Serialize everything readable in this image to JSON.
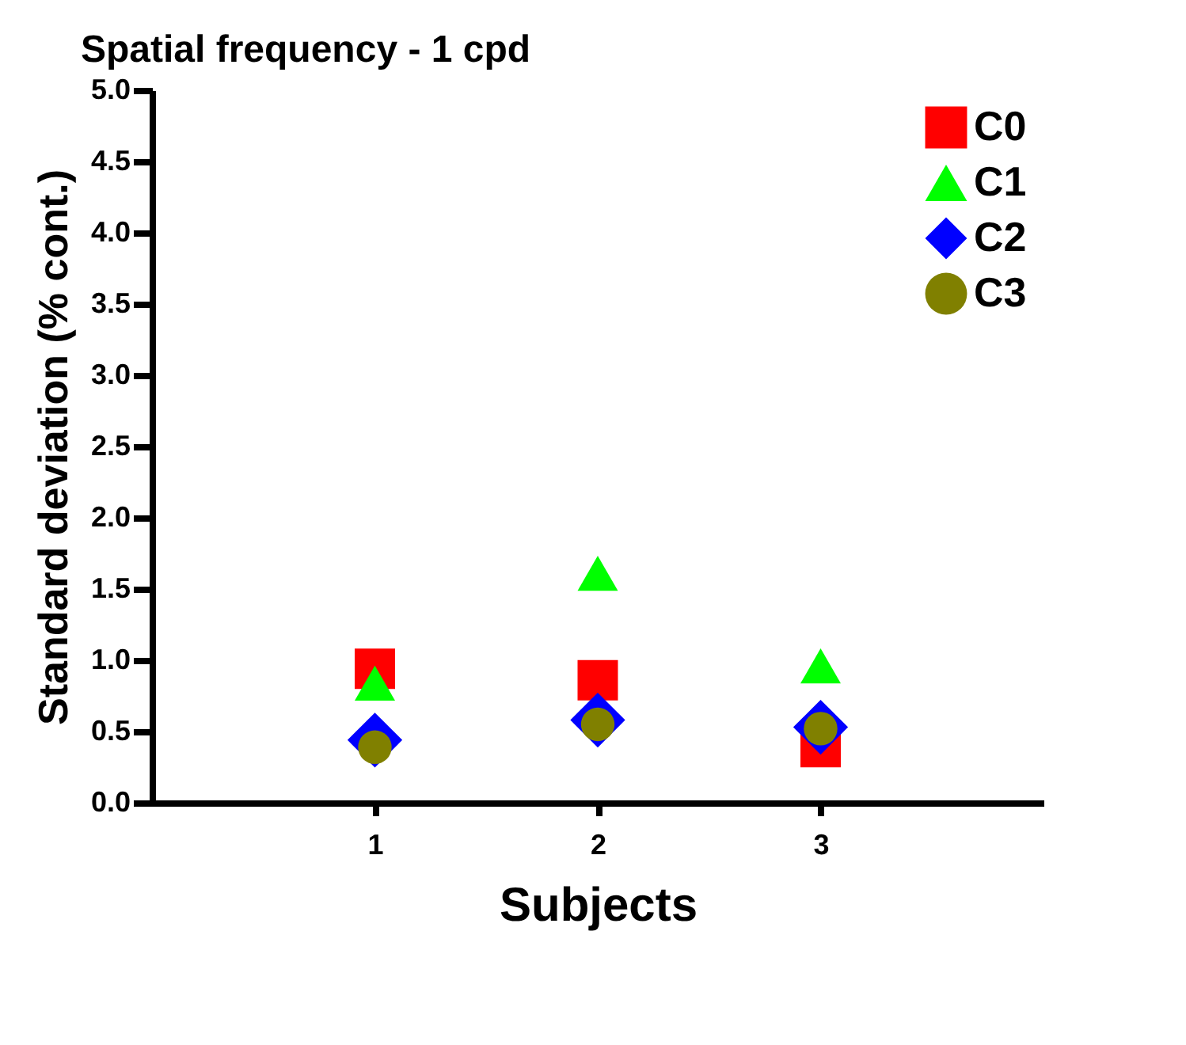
{
  "chart_data": {
    "type": "scatter",
    "title": "Spatial frequency - 1 cpd",
    "xlabel": "Subjects",
    "ylabel": "Standard deviation (% cont.)",
    "x": [
      1,
      2,
      3
    ],
    "xlim": [
      0,
      4
    ],
    "xticks": [
      1,
      2,
      3
    ],
    "ylim": [
      0,
      5
    ],
    "yticks": [
      {
        "value": 0,
        "label": "0.0"
      },
      0.5,
      {
        "value": 1,
        "label": "1.0"
      },
      1.5,
      {
        "value": 2,
        "label": "2.0"
      },
      2.5,
      {
        "value": 3,
        "label": "3.0"
      },
      3.5,
      {
        "value": 4,
        "label": "4.0"
      },
      4.5,
      {
        "value": 5,
        "label": "5.0"
      }
    ],
    "grid": false,
    "legend": "top right",
    "series": [
      {
        "name": "C0",
        "color": "#ff0000",
        "marker": "square",
        "values": [
          0.94,
          0.86,
          0.39
        ]
      },
      {
        "name": "C1",
        "color": "#00ff00",
        "marker": "triangle",
        "values": [
          0.84,
          1.61,
          0.96
        ]
      },
      {
        "name": "C2",
        "color": "#0000ff",
        "marker": "diamond",
        "values": [
          0.44,
          0.58,
          0.53
        ]
      },
      {
        "name": "C3",
        "color": "#808000",
        "marker": "circle",
        "values": [
          0.39,
          0.55,
          0.52
        ]
      }
    ]
  }
}
